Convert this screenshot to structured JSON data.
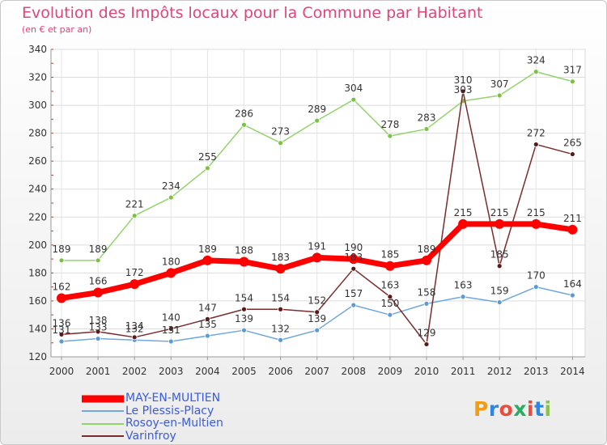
{
  "title": "Evolution des Impôts locaux pour la Commune par Habitant",
  "subtitle": "(en € et par an)",
  "logo_text": "Proxiti",
  "chart_data": {
    "type": "line",
    "title": "Evolution des Impôts locaux pour la Commune par Habitant",
    "subtitle": "(en € et par an)",
    "categories": [
      "2000",
      "2001",
      "2002",
      "2003",
      "2004",
      "2005",
      "2006",
      "2007",
      "2008",
      "2009",
      "2010",
      "2011",
      "2012",
      "2013",
      "2014"
    ],
    "ylim": [
      120,
      340
    ],
    "yticks": [
      120,
      140,
      160,
      180,
      200,
      220,
      240,
      260,
      280,
      300,
      320,
      340
    ],
    "grid": true,
    "legend_position": "bottom-left",
    "series": [
      {
        "name": "MAY-EN-MULTIEN",
        "color": "#ff0000",
        "values": [
          162,
          166,
          172,
          180,
          189,
          188,
          183,
          191,
          190,
          185,
          189,
          215,
          215,
          215,
          211
        ]
      },
      {
        "name": "Le Plessis-Placy",
        "color": "#6fa8dc",
        "values": [
          131,
          133,
          132,
          131,
          135,
          139,
          132,
          139,
          157,
          150,
          158,
          163,
          159,
          170,
          164
        ]
      },
      {
        "name": "Rosoy-en-Multien",
        "color": "#93d36b",
        "values": [
          189,
          189,
          221,
          234,
          255,
          286,
          273,
          289,
          304,
          278,
          283,
          303,
          307,
          324,
          317
        ]
      },
      {
        "name": "Varinfroy",
        "color": "#7a2c2c",
        "values": [
          136,
          138,
          134,
          140,
          147,
          154,
          154,
          152,
          183,
          163,
          129,
          310,
          185,
          272,
          265
        ]
      }
    ]
  }
}
